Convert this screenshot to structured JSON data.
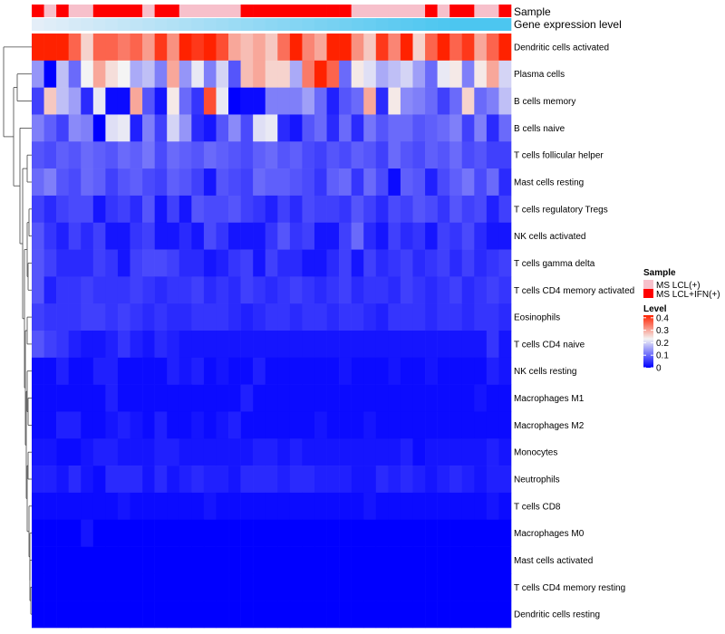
{
  "chart_data": {
    "type": "heatmap",
    "annotation_labels": {
      "sample": "Sample",
      "gene_expression": "Gene expression level"
    },
    "sample_annotation": [
      1,
      0,
      1,
      0,
      0,
      1,
      1,
      1,
      1,
      0,
      1,
      1,
      0,
      0,
      0,
      0,
      0,
      1,
      1,
      1,
      1,
      1,
      1,
      1,
      1,
      1,
      0,
      0,
      0,
      0,
      0,
      0,
      1,
      0,
      1,
      1,
      0,
      0,
      1
    ],
    "gene_expression_annotation": [
      0.0,
      0.03,
      0.06,
      0.09,
      0.12,
      0.15,
      0.18,
      0.21,
      0.24,
      0.27,
      0.3,
      0.33,
      0.36,
      0.39,
      0.42,
      0.45,
      0.48,
      0.51,
      0.54,
      0.57,
      0.6,
      0.63,
      0.66,
      0.69,
      0.72,
      0.75,
      0.78,
      0.81,
      0.84,
      0.87,
      0.9,
      0.93,
      0.96,
      0.98,
      1.0,
      1.0,
      1.0,
      1.0,
      1.0
    ],
    "rows": [
      {
        "label": "Dendritic cells activated",
        "values": [
          0.42,
          0.42,
          0.42,
          0.36,
          0.26,
          0.36,
          0.36,
          0.34,
          0.36,
          0.31,
          0.4,
          0.32,
          0.42,
          0.4,
          0.42,
          0.38,
          0.3,
          0.28,
          0.3,
          0.27,
          0.35,
          0.42,
          0.33,
          0.3,
          0.42,
          0.42,
          0.32,
          0.27,
          0.4,
          0.33,
          0.42,
          0.26,
          0.36,
          0.42,
          0.36,
          0.4,
          0.3,
          0.36,
          0.42
        ]
      },
      {
        "label": "Plasma cells",
        "values": [
          0.14,
          0.0,
          0.18,
          0.1,
          0.23,
          0.3,
          0.25,
          0.23,
          0.16,
          0.18,
          0.12,
          0.3,
          0.14,
          0.22,
          0.12,
          0.2,
          0.08,
          0.28,
          0.3,
          0.26,
          0.26,
          0.16,
          0.34,
          0.42,
          0.36,
          0.1,
          0.24,
          0.21,
          0.16,
          0.18,
          0.2,
          0.15,
          0.1,
          0.22,
          0.24,
          0.12,
          0.24,
          0.3,
          0.2
        ]
      },
      {
        "label": "B cells memory",
        "values": [
          0.06,
          0.27,
          0.18,
          0.15,
          0.04,
          0.22,
          0.01,
          0.01,
          0.3,
          0.08,
          0.02,
          0.24,
          0.1,
          0.05,
          0.38,
          0.22,
          0.0,
          0.01,
          0.01,
          0.12,
          0.12,
          0.12,
          0.15,
          0.1,
          0.03,
          0.08,
          0.1,
          0.3,
          0.04,
          0.24,
          0.13,
          0.12,
          0.1,
          0.06,
          0.1,
          0.26,
          0.1,
          0.12,
          0.18
        ]
      },
      {
        "label": "B cells naive",
        "values": [
          0.12,
          0.09,
          0.06,
          0.13,
          0.12,
          0.0,
          0.21,
          0.22,
          0.03,
          0.12,
          0.06,
          0.2,
          0.14,
          0.04,
          0.02,
          0.08,
          0.13,
          0.07,
          0.21,
          0.22,
          0.04,
          0.02,
          0.08,
          0.1,
          0.04,
          0.1,
          0.04,
          0.11,
          0.08,
          0.1,
          0.1,
          0.08,
          0.09,
          0.1,
          0.12,
          0.06,
          0.12,
          0.04,
          0.1
        ]
      },
      {
        "label": "T cells follicular helper",
        "values": [
          0.08,
          0.07,
          0.09,
          0.08,
          0.1,
          0.09,
          0.08,
          0.1,
          0.09,
          0.11,
          0.07,
          0.1,
          0.09,
          0.08,
          0.1,
          0.09,
          0.08,
          0.07,
          0.09,
          0.1,
          0.08,
          0.09,
          0.07,
          0.06,
          0.08,
          0.07,
          0.09,
          0.08,
          0.06,
          0.1,
          0.08,
          0.07,
          0.09,
          0.08,
          0.1,
          0.07,
          0.08,
          0.06,
          0.06
        ]
      },
      {
        "label": "Mast cells resting",
        "values": [
          0.1,
          0.12,
          0.08,
          0.07,
          0.1,
          0.09,
          0.06,
          0.08,
          0.09,
          0.07,
          0.06,
          0.09,
          0.08,
          0.06,
          0.02,
          0.08,
          0.07,
          0.06,
          0.1,
          0.09,
          0.09,
          0.08,
          0.07,
          0.05,
          0.09,
          0.1,
          0.05,
          0.1,
          0.07,
          0.01,
          0.09,
          0.08,
          0.03,
          0.07,
          0.09,
          0.11,
          0.07,
          0.1,
          0.04
        ]
      },
      {
        "label": "T cells regulatory  Tregs",
        "values": [
          0.06,
          0.04,
          0.06,
          0.07,
          0.07,
          0.02,
          0.05,
          0.06,
          0.04,
          0.08,
          0.02,
          0.06,
          0.02,
          0.08,
          0.07,
          0.07,
          0.08,
          0.06,
          0.05,
          0.03,
          0.06,
          0.04,
          0.07,
          0.06,
          0.06,
          0.05,
          0.08,
          0.06,
          0.04,
          0.07,
          0.06,
          0.08,
          0.07,
          0.05,
          0.08,
          0.06,
          0.07,
          0.03,
          0.06
        ]
      },
      {
        "label": "NK cells activated",
        "values": [
          0.08,
          0.05,
          0.03,
          0.06,
          0.04,
          0.06,
          0.02,
          0.02,
          0.05,
          0.06,
          0.02,
          0.02,
          0.04,
          0.02,
          0.07,
          0.05,
          0.02,
          0.02,
          0.02,
          0.05,
          0.08,
          0.05,
          0.06,
          0.02,
          0.02,
          0.06,
          0.1,
          0.04,
          0.02,
          0.06,
          0.04,
          0.05,
          0.02,
          0.06,
          0.05,
          0.07,
          0.04,
          0.02,
          0.02
        ]
      },
      {
        "label": "T cells gamma delta",
        "values": [
          0.08,
          0.06,
          0.04,
          0.04,
          0.04,
          0.06,
          0.05,
          0.02,
          0.06,
          0.07,
          0.07,
          0.06,
          0.04,
          0.04,
          0.02,
          0.03,
          0.05,
          0.06,
          0.02,
          0.06,
          0.04,
          0.04,
          0.02,
          0.02,
          0.04,
          0.06,
          0.02,
          0.06,
          0.04,
          0.05,
          0.06,
          0.04,
          0.05,
          0.06,
          0.04,
          0.06,
          0.04,
          0.05,
          0.06
        ]
      },
      {
        "label": "T cells CD4 memory activated",
        "values": [
          0.08,
          0.03,
          0.05,
          0.05,
          0.06,
          0.05,
          0.05,
          0.05,
          0.06,
          0.05,
          0.04,
          0.05,
          0.05,
          0.06,
          0.04,
          0.05,
          0.04,
          0.06,
          0.05,
          0.04,
          0.05,
          0.06,
          0.05,
          0.04,
          0.05,
          0.06,
          0.04,
          0.05,
          0.05,
          0.04,
          0.06,
          0.05,
          0.04,
          0.05,
          0.06,
          0.04,
          0.05,
          0.06,
          0.05
        ]
      },
      {
        "label": "Eosinophils",
        "values": [
          0.06,
          0.05,
          0.05,
          0.05,
          0.06,
          0.06,
          0.05,
          0.06,
          0.05,
          0.04,
          0.05,
          0.04,
          0.04,
          0.05,
          0.05,
          0.05,
          0.04,
          0.03,
          0.04,
          0.05,
          0.05,
          0.04,
          0.05,
          0.05,
          0.04,
          0.05,
          0.05,
          0.04,
          0.03,
          0.05,
          0.05,
          0.05,
          0.04,
          0.05,
          0.05,
          0.04,
          0.05,
          0.05,
          0.04
        ]
      },
      {
        "label": "T cells CD4 naive",
        "values": [
          0.08,
          0.06,
          0.05,
          0.03,
          0.02,
          0.02,
          0.03,
          0.05,
          0.03,
          0.02,
          0.04,
          0.03,
          0.02,
          0.02,
          0.02,
          0.02,
          0.02,
          0.02,
          0.02,
          0.02,
          0.02,
          0.02,
          0.02,
          0.02,
          0.02,
          0.02,
          0.02,
          0.02,
          0.02,
          0.02,
          0.02,
          0.02,
          0.02,
          0.02,
          0.02,
          0.02,
          0.02,
          0.05,
          0.02
        ]
      },
      {
        "label": "NK cells resting",
        "values": [
          0.01,
          0.01,
          0.03,
          0.01,
          0.01,
          0.03,
          0.03,
          0.01,
          0.01,
          0.01,
          0.01,
          0.03,
          0.02,
          0.03,
          0.01,
          0.02,
          0.01,
          0.01,
          0.03,
          0.01,
          0.01,
          0.01,
          0.01,
          0.01,
          0.01,
          0.02,
          0.01,
          0.01,
          0.01,
          0.02,
          0.01,
          0.01,
          0.02,
          0.01,
          0.01,
          0.01,
          0.01,
          0.03,
          0.02
        ]
      },
      {
        "label": "Macrophages M1",
        "values": [
          0.01,
          0.01,
          0.01,
          0.01,
          0.01,
          0.01,
          0.03,
          0.01,
          0.01,
          0.01,
          0.01,
          0.01,
          0.01,
          0.01,
          0.01,
          0.01,
          0.01,
          0.03,
          0.01,
          0.01,
          0.01,
          0.01,
          0.01,
          0.01,
          0.01,
          0.01,
          0.01,
          0.01,
          0.01,
          0.01,
          0.01,
          0.01,
          0.01,
          0.01,
          0.01,
          0.01,
          0.02,
          0.01,
          0.01
        ]
      },
      {
        "label": "Macrophages M2",
        "values": [
          0.01,
          0.01,
          0.03,
          0.03,
          0.01,
          0.01,
          0.02,
          0.03,
          0.02,
          0.01,
          0.03,
          0.01,
          0.01,
          0.02,
          0.01,
          0.02,
          0.03,
          0.01,
          0.01,
          0.01,
          0.01,
          0.01,
          0.01,
          0.02,
          0.01,
          0.01,
          0.01,
          0.02,
          0.01,
          0.01,
          0.01,
          0.01,
          0.01,
          0.01,
          0.01,
          0.01,
          0.01,
          0.01,
          0.01
        ]
      },
      {
        "label": "Monocytes",
        "values": [
          0.02,
          0.02,
          0.01,
          0.01,
          0.02,
          0.03,
          0.03,
          0.02,
          0.02,
          0.02,
          0.03,
          0.03,
          0.02,
          0.02,
          0.02,
          0.02,
          0.02,
          0.02,
          0.03,
          0.03,
          0.02,
          0.03,
          0.02,
          0.02,
          0.02,
          0.02,
          0.02,
          0.02,
          0.02,
          0.02,
          0.03,
          0.01,
          0.02,
          0.02,
          0.02,
          0.02,
          0.02,
          0.03,
          0.02
        ]
      },
      {
        "label": "Neutrophils",
        "values": [
          0.03,
          0.03,
          0.02,
          0.04,
          0.02,
          0.01,
          0.04,
          0.04,
          0.04,
          0.02,
          0.04,
          0.02,
          0.03,
          0.04,
          0.03,
          0.03,
          0.02,
          0.04,
          0.04,
          0.04,
          0.03,
          0.04,
          0.04,
          0.03,
          0.03,
          0.03,
          0.02,
          0.02,
          0.04,
          0.03,
          0.04,
          0.03,
          0.02,
          0.03,
          0.04,
          0.03,
          0.02,
          0.03,
          0.03
        ]
      },
      {
        "label": "T cells CD8",
        "values": [
          0.01,
          0.01,
          0.01,
          0.01,
          0.01,
          0.01,
          0.01,
          0.02,
          0.01,
          0.01,
          0.01,
          0.01,
          0.01,
          0.01,
          0.02,
          0.01,
          0.01,
          0.01,
          0.01,
          0.01,
          0.01,
          0.01,
          0.01,
          0.01,
          0.01,
          0.01,
          0.01,
          0.02,
          0.01,
          0.01,
          0.01,
          0.01,
          0.01,
          0.01,
          0.01,
          0.01,
          0.01,
          0.02,
          0.01
        ]
      },
      {
        "label": "Macrophages M0",
        "values": [
          0.0,
          0.0,
          0.0,
          0.0,
          0.02,
          0.0,
          0.0,
          0.0,
          0.0,
          0.0,
          0.0,
          0.0,
          0.0,
          0.0,
          0.0,
          0.0,
          0.0,
          0.0,
          0.0,
          0.0,
          0.0,
          0.0,
          0.0,
          0.0,
          0.0,
          0.0,
          0.0,
          0.0,
          0.0,
          0.0,
          0.0,
          0.0,
          0.0,
          0.0,
          0.0,
          0.0,
          0.0,
          0.0,
          0.0
        ]
      },
      {
        "label": "Mast cells activated",
        "values": [
          0.0,
          0.0,
          0.0,
          0.0,
          0.0,
          0.0,
          0.0,
          0.0,
          0.0,
          0.0,
          0.0,
          0.0,
          0.0,
          0.0,
          0.0,
          0.0,
          0.0,
          0.0,
          0.0,
          0.0,
          0.0,
          0.0,
          0.0,
          0.0,
          0.0,
          0.0,
          0.0,
          0.0,
          0.0,
          0.0,
          0.0,
          0.0,
          0.0,
          0.0,
          0.0,
          0.0,
          0.0,
          0.0,
          0.0
        ]
      },
      {
        "label": "T cells CD4 memory resting",
        "values": [
          0.0,
          0.0,
          0.0,
          0.0,
          0.0,
          0.0,
          0.0,
          0.0,
          0.0,
          0.0,
          0.0,
          0.0,
          0.0,
          0.0,
          0.0,
          0.0,
          0.0,
          0.0,
          0.0,
          0.0,
          0.0,
          0.0,
          0.0,
          0.0,
          0.0,
          0.0,
          0.0,
          0.0,
          0.0,
          0.0,
          0.0,
          0.0,
          0.0,
          0.0,
          0.0,
          0.0,
          0.0,
          0.0,
          0.0
        ]
      },
      {
        "label": "Dendritic cells resting",
        "values": [
          0.0,
          0.0,
          0.0,
          0.0,
          0.0,
          0.0,
          0.0,
          0.0,
          0.0,
          0.0,
          0.0,
          0.0,
          0.0,
          0.0,
          0.0,
          0.0,
          0.0,
          0.0,
          0.0,
          0.0,
          0.0,
          0.0,
          0.0,
          0.0,
          0.0,
          0.0,
          0.0,
          0.0,
          0.0,
          0.0,
          0.0,
          0.0,
          0.0,
          0.0,
          0.0,
          0.0,
          0.0,
          0.0,
          0.0
        ]
      }
    ],
    "legend_sample": {
      "title": "Sample",
      "entries": [
        {
          "label": "MS LCL(+)",
          "color": "#f7c0cb"
        },
        {
          "label": "MS LCL+IFN(+)",
          "color": "#ff0000"
        }
      ]
    },
    "legend_level": {
      "title": "Level",
      "ticks": [
        "0.4",
        "0.3",
        "0.2",
        "0.1",
        "0"
      ],
      "range": [
        0,
        0.42
      ]
    },
    "color_scale": {
      "low": "#0000ff",
      "mid": "#f4f4f4",
      "high": "#ff2200",
      "mid_value": 0.23
    }
  }
}
